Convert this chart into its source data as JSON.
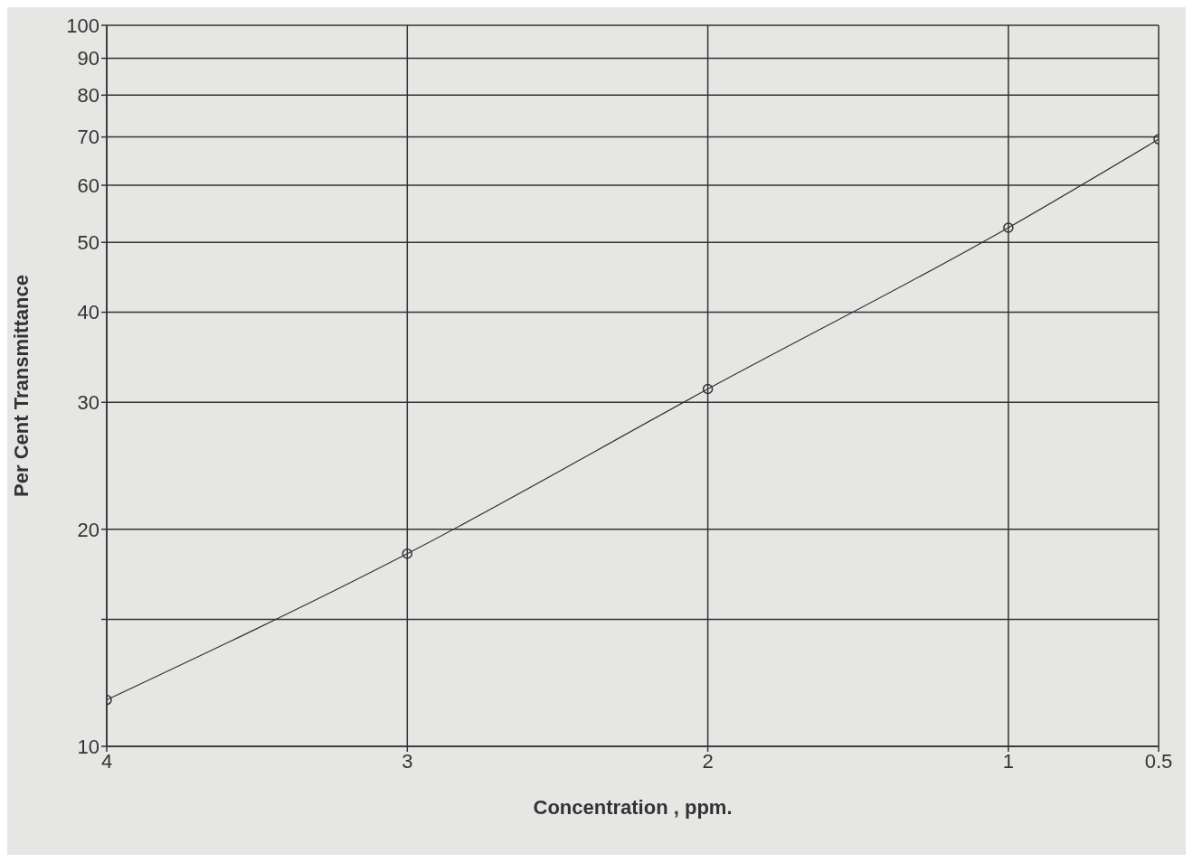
{
  "chart_data": {
    "type": "line",
    "xlabel": "Concentration , ppm.",
    "ylabel": "Per Cent Transmittance",
    "x": [
      4,
      3,
      2,
      1,
      0.5
    ],
    "series": [
      {
        "color": "#333333",
        "values": [
          11.6,
          18.5,
          31.3,
          52.4,
          69.5
        ]
      }
    ],
    "xlim": [
      4,
      0.5
    ],
    "xticks": [
      4,
      3,
      2,
      1,
      0.5
    ],
    "ylim": [
      10,
      100
    ],
    "yticks": [
      10,
      {
        "value": 15,
        "label": null
      },
      20,
      30,
      40,
      50,
      60,
      70,
      80,
      90,
      100
    ],
    "log": "y",
    "grid": true,
    "marker": "circle",
    "line_style": "solid"
  }
}
